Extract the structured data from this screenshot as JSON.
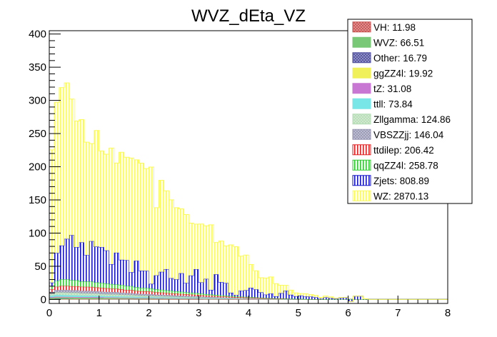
{
  "chart_data": {
    "type": "bar",
    "title": "WVZ_dEta_VZ",
    "xlabel": "",
    "ylabel": "",
    "xlim": [
      0,
      8
    ],
    "ylim": [
      -6,
      405
    ],
    "x_ticks": [
      "0",
      "1",
      "2",
      "3",
      "4",
      "5",
      "6",
      "7",
      "8"
    ],
    "y_ticks": [
      "0",
      "50",
      "100",
      "150",
      "200",
      "250",
      "300",
      "350",
      "400"
    ],
    "stacked": true,
    "legend_position": "top-right",
    "bin_edges": [
      0,
      0.1,
      0.2,
      0.3,
      0.4,
      0.5,
      0.6,
      0.7,
      0.8,
      0.9,
      1.0,
      1.1,
      1.2,
      1.3,
      1.4,
      1.5,
      1.6,
      1.7,
      1.8,
      1.9,
      2.0,
      2.1,
      2.2,
      2.3,
      2.4,
      2.5,
      2.6,
      2.7,
      2.8,
      2.9,
      3.0,
      3.1,
      3.2,
      3.3,
      3.4,
      3.5,
      3.6,
      3.7,
      3.8,
      3.9,
      4.0,
      4.1,
      4.2,
      4.3,
      4.4,
      4.5,
      4.6,
      4.7,
      4.8,
      4.9,
      5.0,
      5.1,
      5.2,
      5.3,
      5.4,
      5.5,
      5.6,
      5.7,
      5.8,
      5.9,
      6.0,
      6.1,
      6.2,
      6.3,
      6.4,
      6.5,
      6.6,
      6.7,
      6.8,
      6.9,
      7.0,
      7.1,
      7.2,
      7.3,
      7.4,
      7.5,
      7.6,
      7.7,
      7.8,
      7.9,
      8.0
    ],
    "stack_order_bottom_to_top": [
      "VH",
      "WVZ",
      "Other",
      "ggZZ4l",
      "tZ",
      "ttll",
      "Zllgamma",
      "VBSZZjj",
      "ttdilep",
      "qqZZ4l",
      "Zjets",
      "WZ"
    ],
    "series": [
      {
        "name": "VH",
        "legend": "VH: 11.98",
        "color": "#c8504f",
        "pattern": "hatch",
        "values": [
          0.2,
          0.3,
          0.3,
          0.3,
          0.3,
          0.3,
          0.3,
          0.3,
          0.3,
          0.3,
          0.3,
          0.3,
          0.3,
          0.3,
          0.3,
          0.3,
          0.3,
          0.2,
          0.2,
          0.2,
          0.2,
          0.2,
          0.2,
          0.2,
          0.2,
          0.2,
          0.2,
          0.2,
          0.2,
          0.2,
          0.2,
          0.2,
          0.2,
          0.2,
          0.1,
          0.1,
          0.1,
          0.1,
          0.1,
          0.1,
          0.1,
          0.1,
          0.1,
          0.1,
          0.1,
          0.1,
          0.1,
          0.1,
          0.1,
          0.1,
          0.1,
          0,
          0,
          0,
          0,
          0,
          0,
          0,
          0,
          0,
          0,
          0,
          0,
          0,
          0,
          0,
          0,
          0,
          0,
          0,
          0,
          0,
          0,
          0,
          0,
          0,
          0,
          0,
          0,
          0
        ]
      },
      {
        "name": "WVZ",
        "legend": "WVZ: 66.51",
        "color": "#78c878",
        "pattern": "solid",
        "values": [
          1.5,
          1.8,
          1.7,
          1.7,
          1.6,
          1.6,
          1.5,
          1.5,
          1.5,
          1.4,
          1.4,
          1.3,
          1.3,
          1.3,
          1.2,
          1.2,
          1.1,
          1.1,
          1.0,
          1.0,
          1.0,
          0.9,
          0.9,
          0.8,
          0.8,
          0.8,
          0.7,
          0.7,
          0.6,
          0.6,
          0.6,
          0.5,
          0.5,
          0.5,
          0.4,
          0.4,
          0.4,
          0.3,
          0.3,
          0.3,
          0.3,
          0.2,
          0.2,
          0.2,
          0.2,
          0.2,
          0.1,
          0.1,
          0.1,
          0.1,
          0.1,
          0,
          0,
          0,
          0,
          0,
          0,
          0,
          0,
          0,
          0,
          0,
          0,
          0,
          0,
          0,
          0,
          0,
          0,
          0,
          0,
          0,
          0,
          0,
          0,
          0,
          0,
          0,
          0,
          0
        ]
      },
      {
        "name": "Other",
        "legend": "Other: 16.79",
        "color": "#4f4f9e",
        "pattern": "hatch",
        "values": [
          0.4,
          0.5,
          0.5,
          0.5,
          0.5,
          0.4,
          0.4,
          0.4,
          0.4,
          0.4,
          0.4,
          0.4,
          0.4,
          0.3,
          0.3,
          0.3,
          0.3,
          0.3,
          0.3,
          0.3,
          0.3,
          0.2,
          0.2,
          0.2,
          0.2,
          0.2,
          0.2,
          0.2,
          0.2,
          0.2,
          0.1,
          0.1,
          0.1,
          0.1,
          0.1,
          0.1,
          0.1,
          0.1,
          0.1,
          0.1,
          0.1,
          0.1,
          0.1,
          0,
          0,
          0,
          0,
          0,
          0,
          0,
          0,
          0,
          0,
          0,
          0,
          0,
          0,
          0,
          0,
          0,
          0,
          0,
          0,
          0,
          0,
          0,
          0,
          0,
          0,
          0,
          0,
          0,
          0,
          0,
          0,
          0,
          0,
          0,
          0,
          0
        ]
      },
      {
        "name": "ggZZ4l",
        "legend": "ggZZ4l: 19.92",
        "color": "#f0f05a",
        "pattern": "solid",
        "values": [
          0.5,
          0.6,
          0.6,
          0.6,
          0.5,
          0.5,
          0.5,
          0.5,
          0.5,
          0.5,
          0.5,
          0.4,
          0.4,
          0.4,
          0.4,
          0.4,
          0.4,
          0.3,
          0.3,
          0.3,
          0.3,
          0.3,
          0.3,
          0.3,
          0.2,
          0.2,
          0.2,
          0.2,
          0.2,
          0.2,
          0.2,
          0.1,
          0.1,
          0.1,
          0.1,
          0.1,
          0.1,
          0.1,
          0.1,
          0.1,
          0.1,
          0.1,
          0,
          0,
          0,
          0,
          0,
          0,
          0,
          0,
          0,
          0,
          0,
          0,
          0,
          0,
          0,
          0,
          0,
          0,
          0,
          0,
          0,
          0,
          0,
          0,
          0,
          0,
          0,
          0,
          0,
          0,
          0,
          0,
          0,
          0,
          0,
          0,
          0,
          0
        ]
      },
      {
        "name": "tZ",
        "legend": "tZ: 31.08",
        "color": "#c878d2",
        "pattern": "solid",
        "values": [
          0.8,
          1.0,
          1.0,
          0.9,
          0.9,
          0.9,
          0.8,
          0.8,
          0.8,
          0.8,
          0.7,
          0.7,
          0.7,
          0.7,
          0.6,
          0.6,
          0.6,
          0.5,
          0.5,
          0.5,
          0.5,
          0.4,
          0.4,
          0.4,
          0.4,
          0.3,
          0.3,
          0.3,
          0.3,
          0.3,
          0.2,
          0.2,
          0.2,
          0.2,
          0.2,
          0.1,
          0.1,
          0.1,
          0.1,
          0.1,
          0.1,
          0.1,
          0.1,
          0,
          0,
          0,
          0,
          0,
          0,
          0,
          0,
          0,
          0,
          0,
          0,
          0,
          0,
          0,
          0,
          0,
          0,
          0,
          0,
          0,
          0,
          0,
          0,
          0,
          0,
          0,
          0,
          0,
          0,
          0,
          0,
          0,
          0,
          0,
          0,
          0
        ]
      },
      {
        "name": "ttll",
        "legend": "ttll: 73.84",
        "color": "#78e6e6",
        "pattern": "solid",
        "values": [
          2.0,
          2.4,
          2.4,
          2.3,
          2.2,
          2.2,
          2.1,
          2.0,
          1.9,
          1.9,
          1.8,
          1.7,
          1.6,
          1.6,
          1.5,
          1.4,
          1.4,
          1.3,
          1.2,
          1.2,
          1.1,
          1.0,
          1.0,
          0.9,
          0.9,
          0.8,
          0.7,
          0.7,
          0.6,
          0.6,
          0.5,
          0.5,
          0.4,
          0.4,
          0.4,
          0.3,
          0.3,
          0.3,
          0.2,
          0.2,
          0.2,
          0.2,
          0.1,
          0.1,
          0.1,
          0.1,
          0.1,
          0,
          0,
          0,
          0,
          0,
          0,
          0,
          0,
          0,
          0,
          0,
          0,
          0,
          0,
          0,
          0,
          0,
          0,
          0,
          0,
          0,
          0,
          0,
          0,
          0,
          0,
          0,
          0,
          0,
          0,
          0,
          0,
          0
        ]
      },
      {
        "name": "Zllgamma",
        "legend": "Zllgamma: 124.86",
        "color": "#b4dcb4",
        "pattern": "hatch",
        "values": [
          3,
          4,
          4,
          4,
          4,
          4,
          3.5,
          3.5,
          3.5,
          3.5,
          3,
          3,
          3,
          3,
          2.8,
          2.6,
          2.5,
          2.4,
          2.2,
          2.1,
          2,
          1.9,
          1.8,
          1.7,
          1.6,
          1.5,
          1.4,
          1.3,
          1.2,
          1.1,
          1,
          0.9,
          0.9,
          0.8,
          0.7,
          0.7,
          0.6,
          0.5,
          0.5,
          0.4,
          0.4,
          0.3,
          0.3,
          0.3,
          0.2,
          0.2,
          0.2,
          0.2,
          0.1,
          0.1,
          0.1,
          0.1,
          0,
          0,
          0,
          0,
          0,
          0,
          0,
          0,
          0,
          0,
          0,
          0,
          0,
          0,
          0,
          0,
          0,
          0,
          0,
          0,
          0,
          0,
          0,
          0,
          0,
          0,
          0,
          0
        ]
      },
      {
        "name": "VBSZZjj",
        "legend": "VBSZZjj: 146.04",
        "color": "#9696b4",
        "pattern": "hatch",
        "values": [
          3,
          3.5,
          3.8,
          4,
          4,
          4,
          4,
          4,
          4,
          3.8,
          3.8,
          3.6,
          3.5,
          3.4,
          3.2,
          3,
          3,
          2.8,
          2.7,
          2.6,
          2.5,
          2.4,
          2.3,
          2.2,
          2.1,
          2,
          1.9,
          1.8,
          1.7,
          1.6,
          1.5,
          1.4,
          1.3,
          1.2,
          1.1,
          1,
          0.9,
          0.8,
          0.8,
          0.7,
          0.6,
          0.6,
          0.5,
          0.5,
          0.4,
          0.4,
          0.3,
          0.3,
          0.3,
          0.2,
          0.2,
          0.2,
          0.1,
          0.1,
          0.1,
          0.1,
          0,
          0,
          0,
          0,
          0,
          0,
          0,
          0,
          0,
          0,
          0,
          0,
          0,
          0,
          0,
          0,
          0,
          0,
          0,
          0,
          0,
          0,
          0,
          0
        ]
      },
      {
        "name": "ttdilep",
        "legend": "ttdilep: 206.42",
        "color": "#e02020",
        "pattern": "vertical",
        "values": [
          4,
          5,
          6,
          6,
          6,
          6,
          6,
          6,
          6,
          5.5,
          5.5,
          5.5,
          5,
          5,
          5,
          4.5,
          4.5,
          4,
          4,
          4,
          3.8,
          3.5,
          3.3,
          3,
          2.9,
          2.8,
          2.6,
          2.5,
          2.3,
          2.2,
          2,
          1.9,
          1.8,
          1.6,
          1.5,
          1.4,
          1.3,
          1.1,
          1,
          0.9,
          0.8,
          0.7,
          0.6,
          0.5,
          0.5,
          0.4,
          0.3,
          0.3,
          0.2,
          0.2,
          0.2,
          0.1,
          0.1,
          0.1,
          0,
          0,
          0,
          0,
          0,
          0,
          0,
          0,
          0,
          0,
          0,
          0,
          0,
          0,
          0,
          0,
          0,
          0,
          0,
          0,
          0,
          0,
          0,
          0,
          0,
          0
        ]
      },
      {
        "name": "qqZZ4l",
        "legend": "qqZZ4l: 258.78",
        "color": "#32c832",
        "pattern": "vertical",
        "values": [
          5,
          9,
          10,
          10,
          9,
          9,
          8,
          8,
          8,
          7.5,
          7.5,
          7,
          7,
          6.5,
          6.5,
          6,
          6,
          5.5,
          5,
          5,
          4.8,
          4.5,
          4.2,
          4,
          3.8,
          3.5,
          3.3,
          3,
          2.8,
          2.6,
          2.4,
          2.2,
          2,
          1.8,
          1.6,
          1.5,
          1.3,
          1.2,
          1.1,
          1,
          0.9,
          0.8,
          0.7,
          0.6,
          0.5,
          0.4,
          0.4,
          0.3,
          0.3,
          0.2,
          0.2,
          0.2,
          0.1,
          0.1,
          0.1,
          0,
          0,
          0,
          0,
          0,
          0,
          0,
          0,
          0,
          0,
          0,
          0,
          0,
          0,
          0,
          0,
          0,
          0,
          0,
          0,
          0,
          0,
          0,
          0,
          0
        ]
      },
      {
        "name": "Zjets",
        "legend": "Zjets: 808.89",
        "color": "#1414c8",
        "pattern": "vertical",
        "values": [
          5,
          42,
          51,
          61,
          68,
          50,
          59,
          40,
          61,
          54,
          54,
          50,
          30,
          48,
          38,
          39,
          21,
          40,
          26,
          26,
          7,
          21,
          27,
          32,
          19,
          18,
          28,
          14,
          26,
          36,
          17,
          23,
          7,
          31,
          20,
          19,
          5,
          2,
          9,
          10,
          14,
          12,
          8,
          5,
          7,
          3,
          8,
          12,
          6,
          4,
          5,
          4,
          4,
          3,
          1,
          3,
          2,
          1,
          2,
          3,
          -3,
          5,
          5,
          1,
          0,
          0,
          0,
          0,
          0,
          0,
          0,
          0,
          0,
          0,
          0,
          0,
          0,
          0,
          0,
          0
        ]
      },
      {
        "name": "WZ",
        "legend": "WZ: 2870.13",
        "color": "#fafa5a",
        "pattern": "vertical",
        "values": [
          200,
          227,
          238,
          235,
          205,
          190,
          185,
          170,
          147,
          175,
          145,
          145,
          175,
          135,
          162,
          155,
          172,
          152,
          162,
          154,
          176,
          102,
          138,
          118,
          118,
          108,
          97,
          103,
          79,
          68,
          88,
          80,
          98,
          48,
          62,
          56,
          72,
          73,
          52,
          53,
          35,
          28,
          22,
          25,
          25,
          19,
          12,
          8,
          7,
          5,
          3,
          4,
          3,
          3,
          2,
          2,
          2,
          1,
          1,
          0,
          0,
          0,
          0,
          0,
          0,
          0,
          0,
          0,
          0,
          0,
          0,
          0,
          0,
          0,
          0,
          0,
          0,
          0,
          0,
          0
        ]
      }
    ]
  }
}
